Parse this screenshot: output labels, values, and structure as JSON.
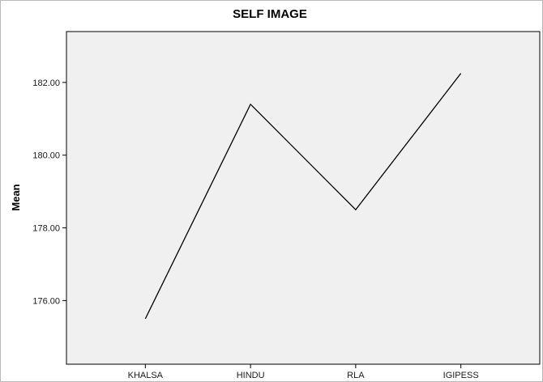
{
  "chart_data": {
    "type": "line",
    "title": "SELF IMAGE",
    "xlabel": "",
    "ylabel": "Mean",
    "categories": [
      "KHALSA",
      "HINDU",
      "RLA",
      "IGIPESS"
    ],
    "series": [
      {
        "values": [
          175.5,
          181.4,
          178.5,
          182.25
        ]
      }
    ],
    "yticks": [
      176.0,
      178.0,
      180.0,
      182.0
    ],
    "ytick_labels": [
      "176.00",
      "178.00",
      "180.00",
      "182.00"
    ],
    "ylim": [
      174.25,
      183.4
    ],
    "grid": false,
    "legend": "none",
    "colors": {
      "plot_background": "#f0f0f0",
      "line": "#000000",
      "frame": "#b9b9b9"
    }
  }
}
